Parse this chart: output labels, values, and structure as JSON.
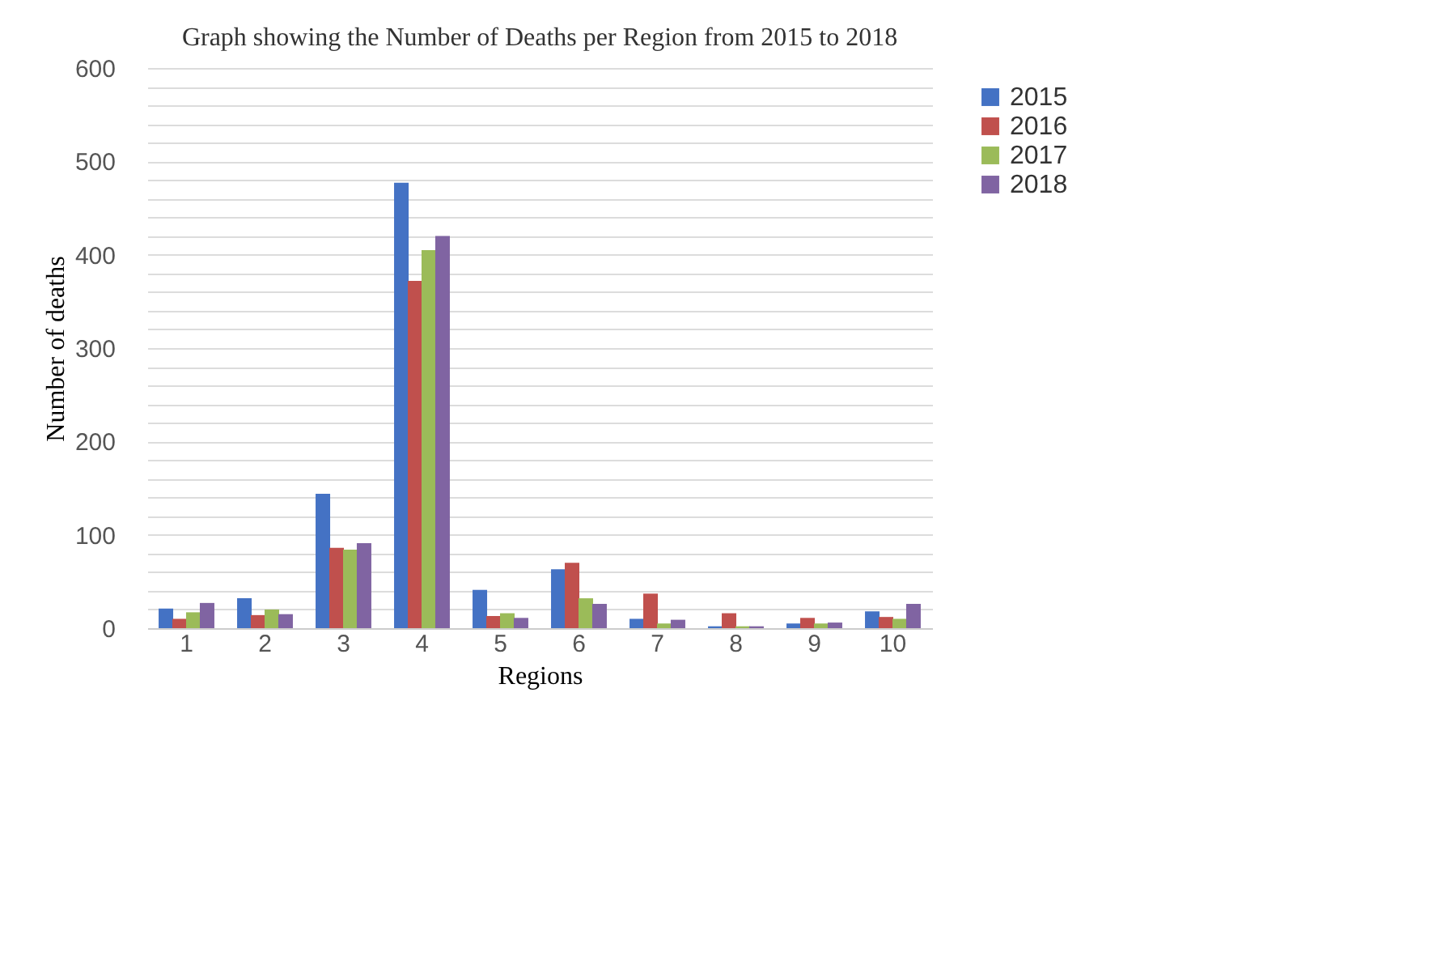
{
  "chart_data": {
    "type": "bar",
    "title": "Graph showing the Number of Deaths per Region from  2015 to 2018",
    "xlabel": "Regions",
    "ylabel": "Number of deaths",
    "categories": [
      "1",
      "2",
      "3",
      "4",
      "5",
      "6",
      "7",
      "8",
      "9",
      "10"
    ],
    "series": [
      {
        "name": "2015",
        "color": "#4472c4",
        "values": [
          21,
          32,
          144,
          477,
          41,
          63,
          10,
          2,
          5,
          18
        ]
      },
      {
        "name": "2016",
        "color": "#c0504d",
        "values": [
          10,
          14,
          86,
          372,
          13,
          70,
          37,
          16,
          11,
          12
        ]
      },
      {
        "name": "2017",
        "color": "#9bbb59",
        "values": [
          17,
          20,
          84,
          405,
          16,
          32,
          5,
          2,
          5,
          10
        ]
      },
      {
        "name": "2018",
        "color": "#8064a2",
        "values": [
          27,
          15,
          91,
          420,
          11,
          26,
          9,
          2,
          6,
          26
        ]
      }
    ],
    "ylim": [
      0,
      600
    ],
    "yticks": [
      0,
      {
        "value": 20,
        "label": null
      },
      {
        "value": 40,
        "label": null
      },
      {
        "value": 60,
        "label": null
      },
      {
        "value": 80,
        "label": null
      },
      100,
      {
        "value": 120,
        "label": null
      },
      {
        "value": 140,
        "label": null
      },
      {
        "value": 160,
        "label": null
      },
      {
        "value": 180,
        "label": null
      },
      200,
      {
        "value": 220,
        "label": null
      },
      {
        "value": 240,
        "label": null
      },
      {
        "value": 260,
        "label": null
      },
      {
        "value": 280,
        "label": null
      },
      300,
      {
        "value": 320,
        "label": null
      },
      {
        "value": 340,
        "label": null
      },
      {
        "value": 360,
        "label": null
      },
      {
        "value": 380,
        "label": null
      },
      400,
      {
        "value": 420,
        "label": null
      },
      {
        "value": 440,
        "label": null
      },
      {
        "value": 460,
        "label": null
      },
      {
        "value": 480,
        "label": null
      },
      500,
      {
        "value": 520,
        "label": null
      },
      {
        "value": 540,
        "label": null
      },
      {
        "value": 560,
        "label": null
      },
      {
        "value": 580,
        "label": null
      },
      600
    ],
    "grid": "y",
    "legend": "right"
  }
}
